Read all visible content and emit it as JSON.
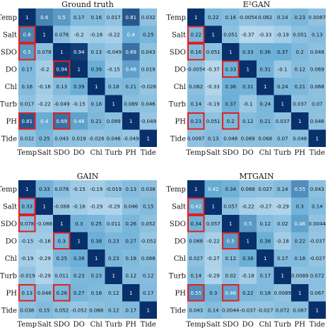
{
  "chart_data": [
    {
      "type": "heatmap",
      "title": "Ground truth",
      "x_labels": [
        "Temp",
        "Salt",
        "SDO",
        "DO",
        "Chl",
        "Turb",
        "PH",
        "Tide"
      ],
      "y_labels": [
        "Temp",
        "Salt",
        "SDO",
        "DO",
        "Chl",
        "Turb",
        "PH",
        "Tide"
      ],
      "values": [
        [
          "1",
          "0.6",
          "0.5",
          "0.17",
          "0.16",
          "0.017",
          "0.81",
          "0.032"
        ],
        [
          "0.6",
          "1",
          "0.078",
          "-0.2",
          "-0.16",
          "-0.22",
          "0.4",
          "0.25"
        ],
        [
          "0.5",
          "0.078",
          "1",
          "0.94",
          "0.13",
          "-0.049",
          "0.69",
          "0.043"
        ],
        [
          "0.17",
          "-0.2",
          "0.94",
          "1",
          "0.39",
          "-0.15",
          "0.46",
          "0.019"
        ],
        [
          "0.16",
          "-0.16",
          "0.13",
          "0.39",
          "1",
          "0.18",
          "0.21",
          "-0.026"
        ],
        [
          "0.017",
          "-0.22",
          "-0.049",
          "-0.15",
          "0.18",
          "1",
          "0.089",
          "0.046"
        ],
        [
          "0.81",
          "0.4",
          "0.69",
          "0.46",
          "0.21",
          "0.089",
          "1",
          "-0.049"
        ],
        [
          "0.032",
          "0.25",
          "0.043",
          "0.019",
          "-0.026",
          "0.046",
          "-0.049",
          "1"
        ]
      ],
      "highlighted": [
        [
          1,
          0
        ],
        [
          2,
          0
        ],
        [
          3,
          2
        ],
        [
          6,
          0
        ],
        [
          6,
          2
        ]
      ],
      "color_range": [
        -1,
        1
      ]
    },
    {
      "type": "heatmap",
      "title": "E²GAN",
      "x_labels": [
        "Temp",
        "Salt",
        "SDO",
        "DO",
        "Chl",
        "Turb",
        "PH",
        "Tide"
      ],
      "y_labels": [
        "Temp",
        "Salt",
        "SDO",
        "DO",
        "Chl",
        "Turb",
        "PH",
        "Tide"
      ],
      "values": [
        [
          "1",
          "0.22",
          "0.16",
          "-0.0054",
          "0.062",
          "0.14",
          "0.23",
          "0.0087"
        ],
        [
          "0.22",
          "1",
          "0.051",
          "-0.37",
          "-0.33",
          "-0.19",
          "0.051",
          "0.13"
        ],
        [
          "0.16",
          "0.051",
          "1",
          "0.33",
          "0.36",
          "0.37",
          "0.2",
          "0.048"
        ],
        [
          "-0.0054",
          "-0.37",
          "0.33",
          "1",
          "0.31",
          "-0.1",
          "0.12",
          "0.069"
        ],
        [
          "0.062",
          "-0.33",
          "0.36",
          "0.31",
          "1",
          "0.24",
          "0.21",
          "0.068"
        ],
        [
          "0.14",
          "-0.19",
          "0.37",
          "-0.1",
          "0.24",
          "1",
          "0.037",
          "0.07"
        ],
        [
          "0.23",
          "0.051",
          "0.2",
          "0.12",
          "0.21",
          "0.037",
          "1",
          "0.046"
        ],
        [
          "0.0087",
          "0.13",
          "0.048",
          "0.069",
          "0.068",
          "0.07",
          "0.046",
          "1"
        ]
      ],
      "highlighted": [
        [
          1,
          0
        ],
        [
          2,
          0
        ],
        [
          3,
          2
        ],
        [
          6,
          0
        ],
        [
          6,
          2
        ]
      ],
      "color_range": [
        -1,
        1
      ]
    },
    {
      "type": "heatmap",
      "title": "GAIN",
      "x_labels": [
        "Temp",
        "Salt",
        "SDO",
        "DO",
        "Chl",
        "Turb",
        "PH",
        "Tide"
      ],
      "y_labels": [
        "Temp",
        "Salt",
        "SDO",
        "DO",
        "Chl",
        "Turb",
        "PH",
        "Tide"
      ],
      "values": [
        [
          "1",
          "0.33",
          "0.078",
          "-0.15",
          "-0.19",
          "-0.019",
          "0.13",
          "0.038"
        ],
        [
          "0.33",
          "1",
          "-0.088",
          "-0.16",
          "-0.29",
          "-0.29",
          "0.046",
          "0.15"
        ],
        [
          "0.078",
          "-0.088",
          "1",
          "0.3",
          "0.25",
          "0.011",
          "0.26",
          "0.052"
        ],
        [
          "-0.15",
          "-0.16",
          "0.3",
          "1",
          "0.38",
          "0.23",
          "0.27",
          "-0.052"
        ],
        [
          "-0.19",
          "-0.29",
          "0.25",
          "0.38",
          "1",
          "0.23",
          "0.18",
          "0.068"
        ],
        [
          "-0.019",
          "-0.29",
          "0.011",
          "0.23",
          "0.23",
          "1",
          "0.12",
          "0.12"
        ],
        [
          "0.13",
          "0.046",
          "0.26",
          "0.27",
          "0.18",
          "0.12",
          "1",
          "0.17"
        ],
        [
          "0.038",
          "0.15",
          "0.052",
          "-0.052",
          "0.068",
          "0.12",
          "0.17",
          "1"
        ]
      ],
      "highlighted": [
        [
          1,
          0
        ],
        [
          2,
          0
        ],
        [
          3,
          2
        ],
        [
          6,
          0
        ],
        [
          6,
          2
        ]
      ],
      "color_range": [
        -1,
        1
      ]
    },
    {
      "type": "heatmap",
      "title": "MTGAIN",
      "x_labels": [
        "Temp",
        "Salt",
        "SDO",
        "DO",
        "Chl",
        "Turb",
        "PH",
        "Tide"
      ],
      "y_labels": [
        "Temp",
        "Salt",
        "SDO",
        "DO",
        "Chl",
        "Turb",
        "PH",
        "Tide"
      ],
      "values": [
        [
          "1",
          "0.42",
          "0.34",
          "0.068",
          "0.027",
          "0.14",
          "0.55",
          "0.043"
        ],
        [
          "0.42",
          "1",
          "0.057",
          "-0.22",
          "-0.27",
          "-0.29",
          "0.3",
          "0.14"
        ],
        [
          "0.34",
          "0.057",
          "1",
          "0.5",
          "0.12",
          "0.02",
          "0.46",
          "0.0044"
        ],
        [
          "0.068",
          "-0.22",
          "0.5",
          "1",
          "0.38",
          "-0.18",
          "0.22",
          "-0.037"
        ],
        [
          "0.027",
          "-0.27",
          "0.12",
          "0.38",
          "1",
          "0.17",
          "0.18",
          "-0.027"
        ],
        [
          "0.14",
          "-0.29",
          "0.02",
          "-0.18",
          "0.17",
          "1",
          "0.0089",
          "0.072"
        ],
        [
          "0.55",
          "0.3",
          "0.46",
          "0.22",
          "0.18",
          "0.0089",
          "1",
          "0.067"
        ],
        [
          "0.043",
          "0.14",
          "0.0044",
          "-0.037",
          "-0.027",
          "0.072",
          "0.067",
          "1"
        ]
      ],
      "highlighted": [
        [
          1,
          0
        ],
        [
          2,
          0
        ],
        [
          3,
          2
        ],
        [
          6,
          0
        ],
        [
          6,
          2
        ]
      ],
      "color_range": [
        -1,
        1
      ]
    }
  ],
  "colors": {
    "low": "#f4f9fe",
    "mid": "#6aaed6",
    "high": "#08306b",
    "highlight": "#e02020",
    "text_dark": "#111111",
    "text_light": "#ffffff"
  }
}
